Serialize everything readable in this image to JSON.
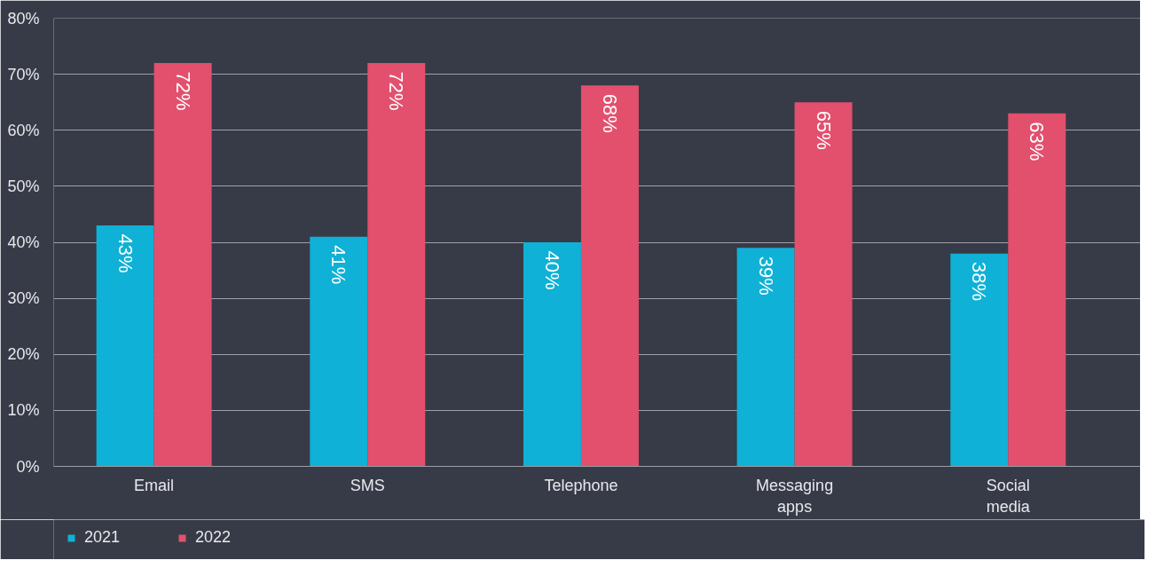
{
  "chart_data": {
    "type": "bar",
    "categories": [
      "Email",
      "SMS",
      "Telephone",
      "Messaging apps",
      "Social media"
    ],
    "series": [
      {
        "name": "2021",
        "color": "#0fb1d6",
        "values": [
          43,
          41,
          40,
          39,
          38
        ],
        "value_labels": [
          "43%",
          "41%",
          "40%",
          "39%",
          "38%"
        ]
      },
      {
        "name": "2022",
        "color": "#e2506e",
        "values": [
          72,
          72,
          68,
          65,
          63
        ],
        "value_labels": [
          "72%",
          "72%",
          "68%",
          "65%",
          "63%"
        ]
      }
    ],
    "ylim": [
      0,
      80
    ],
    "yticks": [
      {
        "value": 0,
        "label": "0%"
      },
      {
        "value": 10,
        "label": "10%"
      },
      {
        "value": 20,
        "label": "20%"
      },
      {
        "value": 30,
        "label": "30%"
      },
      {
        "value": 40,
        "label": "40%"
      },
      {
        "value": 50,
        "label": "50%"
      },
      {
        "value": 60,
        "label": "60%"
      },
      {
        "value": 70,
        "label": "70%"
      },
      {
        "value": 80,
        "label": "80%"
      }
    ],
    "grid": "y",
    "legend": "bottom left"
  }
}
